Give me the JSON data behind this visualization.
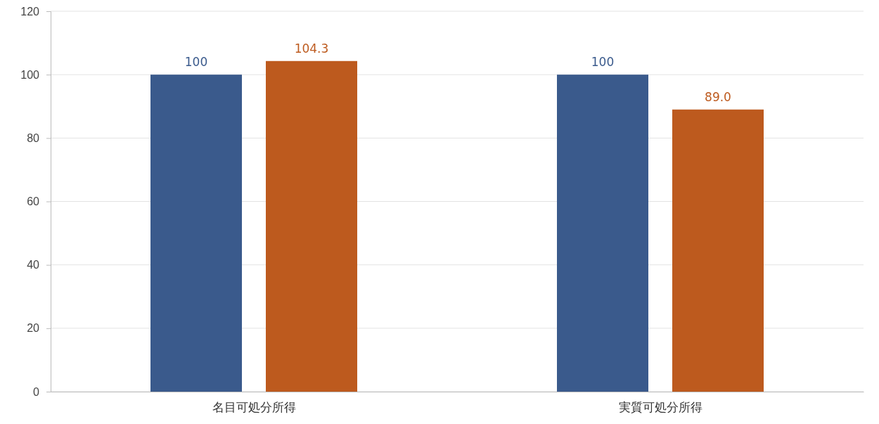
{
  "chart_data": {
    "type": "bar",
    "categories": [
      "名目可処分所得",
      "実質可処分所得"
    ],
    "series": [
      {
        "color": "#3a5a8c",
        "values": [
          100,
          100
        ],
        "value_labels": [
          "100",
          "100"
        ]
      },
      {
        "color": "#bd5a1e",
        "values": [
          104.3,
          89.0
        ],
        "value_labels": [
          "104.3",
          "89.0"
        ]
      }
    ],
    "ylim": [
      0,
      120
    ],
    "yticks": [
      0,
      20,
      40,
      60,
      80,
      100,
      120
    ],
    "grid": "y"
  }
}
